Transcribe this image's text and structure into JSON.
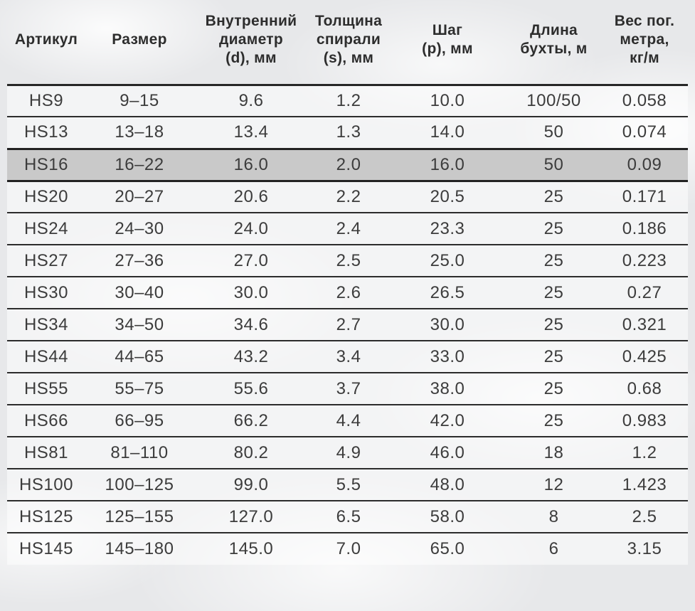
{
  "colors": {
    "background": "#e7e8ea",
    "row_fill": "#f3f4f5",
    "row_highlight": "#c9c9c9",
    "separator_line": "#2c2c2c",
    "text": "#3c3c3c"
  },
  "table": {
    "columns": [
      "Артикул",
      "Размер",
      "Внутренний\nдиаметр\n(d), мм",
      "Толщина\nспирали\n(s), мм",
      "Шаг\n(p), мм",
      "Длина\nбухты, м",
      "Вес пог.\nметра,\nкг/м"
    ],
    "highlighted_row_index": 2,
    "rows": [
      {
        "cells": [
          "HS9",
          "9–15",
          "9.6",
          "1.2",
          "10.0",
          "100/50",
          "0.058"
        ]
      },
      {
        "cells": [
          "HS13",
          "13–18",
          "13.4",
          "1.3",
          "14.0",
          "50",
          "0.074"
        ]
      },
      {
        "cells": [
          "HS16",
          "16–22",
          "16.0",
          "2.0",
          "16.0",
          "50",
          "0.09"
        ]
      },
      {
        "cells": [
          "HS20",
          "20–27",
          "20.6",
          "2.2",
          "20.5",
          "25",
          "0.171"
        ]
      },
      {
        "cells": [
          "HS24",
          "24–30",
          "24.0",
          "2.4",
          "23.3",
          "25",
          "0.186"
        ]
      },
      {
        "cells": [
          "HS27",
          "27–36",
          "27.0",
          "2.5",
          "25.0",
          "25",
          "0.223"
        ]
      },
      {
        "cells": [
          "HS30",
          "30–40",
          "30.0",
          "2.6",
          "26.5",
          "25",
          "0.27"
        ]
      },
      {
        "cells": [
          "HS34",
          "34–50",
          "34.6",
          "2.7",
          "30.0",
          "25",
          "0.321"
        ]
      },
      {
        "cells": [
          "HS44",
          "44–65",
          "43.2",
          "3.4",
          "33.0",
          "25",
          "0.425"
        ]
      },
      {
        "cells": [
          "HS55",
          "55–75",
          "55.6",
          "3.7",
          "38.0",
          "25",
          "0.68"
        ]
      },
      {
        "cells": [
          "HS66",
          "66–95",
          "66.2",
          "4.4",
          "42.0",
          "25",
          "0.983"
        ]
      },
      {
        "cells": [
          "HS81",
          "81–110",
          "80.2",
          "4.9",
          "46.0",
          "18",
          "1.2"
        ]
      },
      {
        "cells": [
          "HS100",
          "100–125",
          "99.0",
          "5.5",
          "48.0",
          "12",
          "1.423"
        ]
      },
      {
        "cells": [
          "HS125",
          "125–155",
          "127.0",
          "6.5",
          "58.0",
          "8",
          "2.5"
        ]
      },
      {
        "cells": [
          "HS145",
          "145–180",
          "145.0",
          "7.0",
          "65.0",
          "6",
          "3.15"
        ]
      }
    ]
  }
}
